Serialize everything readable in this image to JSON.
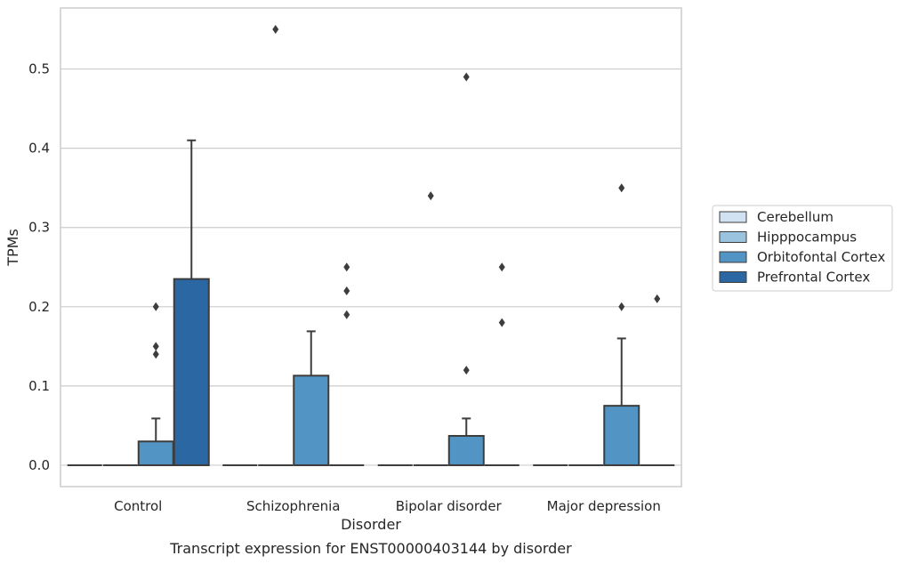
{
  "chart_data": {
    "type": "box",
    "caption": "Transcript expression for ENST00000403144 by disorder",
    "xlabel": "Disorder",
    "ylabel": "TPMs",
    "ylim": [
      -0.027,
      0.577
    ],
    "yticks": [
      0.0,
      0.1,
      0.2,
      0.3,
      0.4,
      0.5
    ],
    "ytick_labels": [
      "0.0",
      "0.1",
      "0.2",
      "0.3",
      "0.4",
      "0.5"
    ],
    "grid": "horizontal",
    "legend_placement": "right",
    "categories": [
      "Control",
      "Schizophrenia",
      "Bipolar disorder",
      "Major depression"
    ],
    "series": [
      {
        "name": "Cerebellum",
        "color": "#d1e2f2",
        "boxes": [
          {
            "min": 0,
            "q1": 0,
            "median": 0,
            "q3": 0,
            "max": 0,
            "outliers": []
          },
          {
            "min": 0,
            "q1": 0,
            "median": 0,
            "q3": 0,
            "max": 0,
            "outliers": []
          },
          {
            "min": 0,
            "q1": 0,
            "median": 0,
            "q3": 0,
            "max": 0,
            "outliers": []
          },
          {
            "min": 0,
            "q1": 0,
            "median": 0,
            "q3": 0,
            "max": 0,
            "outliers": []
          }
        ]
      },
      {
        "name": "Hipppocampus",
        "color": "#9ac3df",
        "boxes": [
          {
            "min": 0,
            "q1": 0,
            "median": 0,
            "q3": 0,
            "max": 0,
            "outliers": []
          },
          {
            "min": 0,
            "q1": 0,
            "median": 0,
            "q3": 0,
            "max": 0,
            "outliers": [
              0.55
            ]
          },
          {
            "min": 0,
            "q1": 0,
            "median": 0,
            "q3": 0,
            "max": 0,
            "outliers": [
              0.34
            ]
          },
          {
            "min": 0,
            "q1": 0,
            "median": 0,
            "q3": 0,
            "max": 0,
            "outliers": []
          }
        ]
      },
      {
        "name": "Orbitofontal Cortex",
        "color": "#5295c5",
        "boxes": [
          {
            "min": 0,
            "q1": 0,
            "median": 0,
            "q3": 0.03,
            "max": 0.059,
            "outliers": [
              0.14,
              0.15,
              0.2
            ]
          },
          {
            "min": 0,
            "q1": 0,
            "median": 0,
            "q3": 0.113,
            "max": 0.169,
            "outliers": []
          },
          {
            "min": 0,
            "q1": 0,
            "median": 0,
            "q3": 0.037,
            "max": 0.059,
            "outliers": [
              0.12,
              0.49
            ]
          },
          {
            "min": 0,
            "q1": 0,
            "median": 0,
            "q3": 0.075,
            "max": 0.16,
            "outliers": [
              0.2,
              0.35
            ]
          }
        ]
      },
      {
        "name": "Prefrontal Cortex",
        "color": "#2a67a3",
        "boxes": [
          {
            "min": 0,
            "q1": 0,
            "median": 0,
            "q3": 0.235,
            "max": 0.41,
            "outliers": []
          },
          {
            "min": 0,
            "q1": 0,
            "median": 0,
            "q3": 0,
            "max": 0,
            "outliers": [
              0.19,
              0.22,
              0.25
            ]
          },
          {
            "min": 0,
            "q1": 0,
            "median": 0,
            "q3": 0,
            "max": 0,
            "outliers": [
              0.18,
              0.25
            ]
          },
          {
            "min": 0,
            "q1": 0,
            "median": 0,
            "q3": 0,
            "max": 0,
            "outliers": [
              0.21
            ]
          }
        ]
      }
    ]
  }
}
